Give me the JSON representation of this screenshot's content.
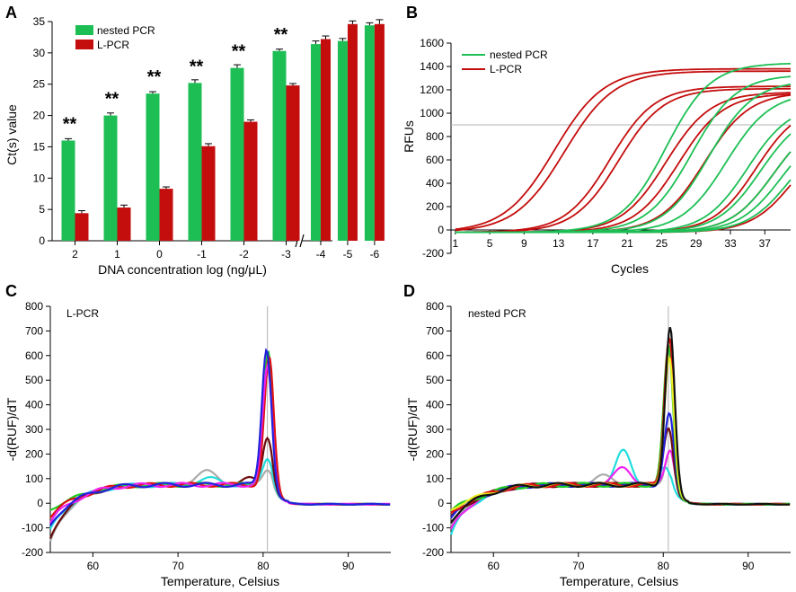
{
  "colors": {
    "nested": "#1dbf55",
    "lpcr": "#c40d0d",
    "axis": "#000000",
    "refline": "#b3b3b3"
  },
  "chart_data": [
    {
      "panel": "A",
      "type": "bar",
      "xlabel": "DNA concentration log (ng/μL)",
      "ylabel": "Ct(s) value",
      "ylim": [
        0,
        35
      ],
      "yticks": [
        0,
        5,
        10,
        15,
        20,
        25,
        30,
        35
      ],
      "categories": [
        "2",
        "1",
        "0",
        "-1",
        "-2",
        "-3",
        "-4",
        "-5",
        "-6"
      ],
      "axis_break_after_index": 5,
      "series": [
        {
          "name": "nested PCR",
          "color_key": "nested",
          "values": [
            16.0,
            20.0,
            23.5,
            25.2,
            27.6,
            30.3,
            31.4,
            31.9,
            34.4
          ],
          "errors": [
            0.3,
            0.4,
            0.3,
            0.5,
            0.5,
            0.3,
            0.5,
            0.4,
            0.4
          ]
        },
        {
          "name": "L-PCR",
          "color_key": "lpcr",
          "values": [
            4.4,
            5.3,
            8.3,
            15.1,
            19.0,
            24.8,
            32.2,
            34.6,
            34.6
          ],
          "errors": [
            0.4,
            0.4,
            0.3,
            0.4,
            0.3,
            0.3,
            0.5,
            0.5,
            0.7
          ]
        }
      ],
      "significance": [
        "**",
        "**",
        "**",
        "**",
        "**",
        "**",
        "",
        "",
        ""
      ],
      "legend": [
        "nested PCR",
        "L-PCR"
      ]
    },
    {
      "panel": "B",
      "type": "line",
      "xlabel": "Cycles",
      "ylabel": "RFUs",
      "xlim": [
        0.5,
        40
      ],
      "ylim": [
        -200,
        1600
      ],
      "xticks": [
        1,
        5,
        9,
        13,
        17,
        21,
        25,
        29,
        33,
        37
      ],
      "yticks": [
        -200,
        0,
        200,
        400,
        600,
        800,
        1000,
        1200,
        1400,
        1600
      ],
      "threshold": 900,
      "legend": [
        "nested PCR",
        "L-PCR"
      ],
      "series": [
        {
          "name": "L-PCR",
          "color_key": "lpcr",
          "curves": [
            {
              "plateau": 1400,
              "midpoint": 12.5,
              "slope": 2.9
            },
            {
              "plateau": 1380,
              "midpoint": 13.7,
              "slope": 2.9
            },
            {
              "plateau": 1250,
              "midpoint": 19.0,
              "slope": 2.6
            },
            {
              "plateau": 1230,
              "midpoint": 20.0,
              "slope": 2.6
            },
            {
              "plateau": 1200,
              "midpoint": 25.5,
              "slope": 2.6
            },
            {
              "plateau": 1190,
              "midpoint": 27.0,
              "slope": 2.6
            },
            {
              "plateau": 1200,
              "midpoint": 30.0,
              "slope": 2.6
            },
            {
              "plateau": 1100,
              "midpoint": 36.0,
              "slope": 2.5
            },
            {
              "plateau": 1000,
              "midpoint": 38.0,
              "slope": 2.5
            },
            {
              "plateau": 900,
              "midpoint": 40.5,
              "slope": 2.5
            }
          ]
        },
        {
          "name": "nested PCR",
          "color_key": "nested",
          "curves": [
            {
              "plateau": 1450,
              "midpoint": 25.5,
              "slope": 2.6
            },
            {
              "plateau": 1350,
              "midpoint": 28.5,
              "slope": 2.6
            },
            {
              "plateau": 1300,
              "midpoint": 30.5,
              "slope": 2.6
            },
            {
              "plateau": 1200,
              "midpoint": 32.5,
              "slope": 2.6
            },
            {
              "plateau": 1100,
              "midpoint": 35.0,
              "slope": 2.5
            },
            {
              "plateau": 1050,
              "midpoint": 36.5,
              "slope": 2.5
            },
            {
              "plateau": 1000,
              "midpoint": 38.0,
              "slope": 2.5
            },
            {
              "plateau": 950,
              "midpoint": 39.0,
              "slope": 2.5
            },
            {
              "plateau": 900,
              "midpoint": 40.0,
              "slope": 2.5
            }
          ]
        }
      ]
    },
    {
      "panel": "C",
      "type": "line",
      "annotation": "L-PCR",
      "xlabel": "Temperature, Celsius",
      "ylabel": "-d(RUF)/dT",
      "xlim": [
        55,
        95
      ],
      "ylim": [
        -200,
        800
      ],
      "xticks": [
        60,
        70,
        80,
        90
      ],
      "yticks": [
        -200,
        -100,
        0,
        100,
        200,
        300,
        400,
        500,
        600,
        700,
        800
      ],
      "vline": 80.5,
      "series": [
        {
          "name": "gray",
          "color": "#aaaaaa",
          "peak_height": 60,
          "peak_center": 80.5,
          "secondary": [
            {
              "x": 73.2,
              "h": 55,
              "w": 1.2
            }
          ],
          "start": -170
        },
        {
          "name": "cyan",
          "color": "#22dddd",
          "peak_height": 105,
          "peak_center": 80.5,
          "secondary": [
            {
              "x": 73.5,
              "h": 25,
              "w": 1.3
            }
          ],
          "start": -120
        },
        {
          "name": "dark red",
          "color": "#6b0d0d",
          "peak_height": 190,
          "peak_center": 80.5,
          "secondary": [
            {
              "x": 78.5,
              "h": 25,
              "w": 0.8
            }
          ],
          "start": -150
        },
        {
          "name": "green",
          "color": "#22cc22",
          "peak_height": 540,
          "peak_center": 80.6,
          "secondary": [],
          "start": -30
        },
        {
          "name": "red",
          "color": "#dd1111",
          "peak_height": 520,
          "peak_center": 80.7,
          "secondary": [],
          "start": -60
        },
        {
          "name": "magenta",
          "color": "#ee22ee",
          "peak_height": 480,
          "peak_center": 80.5,
          "secondary": [],
          "start": -90
        },
        {
          "name": "blue",
          "color": "#2222dd",
          "peak_height": 550,
          "peak_center": 80.4,
          "secondary": [],
          "start": -100
        }
      ]
    },
    {
      "panel": "D",
      "type": "line",
      "annotation": "nested PCR",
      "xlabel": "Temperature, Celsius",
      "ylabel": "-d(RUF)/dT",
      "xlim": [
        55,
        95
      ],
      "ylim": [
        -200,
        800
      ],
      "xticks": [
        60,
        70,
        80,
        90
      ],
      "yticks": [
        -200,
        -100,
        0,
        100,
        200,
        300,
        400,
        500,
        600,
        700,
        800
      ],
      "vline": 80.6,
      "series": [
        {
          "name": "gray",
          "color": "#aaaaaa",
          "peak_height": 140,
          "peak_center": 80.8,
          "secondary": [
            {
              "x": 72.8,
              "h": 35,
              "w": 1.1
            }
          ],
          "start": -100
        },
        {
          "name": "cyan",
          "color": "#22dddd",
          "peak_height": 70,
          "peak_center": 80.2,
          "secondary": [
            {
              "x": 75.3,
              "h": 135,
              "w": 0.9
            }
          ],
          "start": -140
        },
        {
          "name": "magenta",
          "color": "#ee22ee",
          "peak_height": 140,
          "peak_center": 80.8,
          "secondary": [
            {
              "x": 75.3,
              "h": 70,
              "w": 1.0
            }
          ],
          "start": -120
        },
        {
          "name": "dark red",
          "color": "#6b0d0d",
          "peak_height": 230,
          "peak_center": 80.6,
          "secondary": [],
          "start": -70
        },
        {
          "name": "blue",
          "color": "#2222dd",
          "peak_height": 290,
          "peak_center": 80.7,
          "secondary": [],
          "start": -60
        },
        {
          "name": "green",
          "color": "#22cc22",
          "peak_height": 560,
          "peak_center": 80.6,
          "secondary": [],
          "start": -40
        },
        {
          "name": "red",
          "color": "#dd1111",
          "peak_height": 600,
          "peak_center": 80.7,
          "secondary": [],
          "start": -50
        },
        {
          "name": "yellow",
          "color": "#eeee22",
          "peak_height": 520,
          "peak_center": 80.7,
          "secondary": [],
          "start": -30
        },
        {
          "name": "black",
          "color": "#111111",
          "peak_height": 640,
          "peak_center": 80.8,
          "secondary": [],
          "start": -80
        }
      ]
    }
  ]
}
